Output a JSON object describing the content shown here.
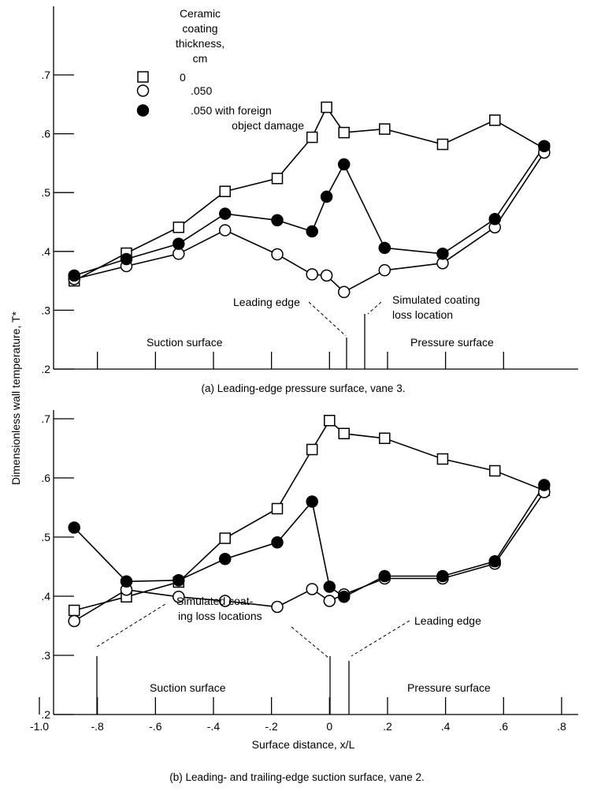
{
  "figure": {
    "ylabel": "Dimensionless wall temperature, T*",
    "legend": {
      "title_lines": [
        "Ceramic",
        "coating",
        "thickness,",
        "cm"
      ],
      "entries": [
        {
          "marker": "open-square",
          "lines": [
            "0"
          ]
        },
        {
          "marker": "open-circle",
          "lines": [
            ".050"
          ]
        },
        {
          "marker": "filled-circle",
          "lines": [
            ".050 with foreign",
            "object damage"
          ]
        }
      ]
    }
  },
  "chart_data": [
    {
      "type": "line",
      "caption": "(a) Leading-edge pressure surface, vane 3.",
      "ylim": [
        0.2,
        0.7
      ],
      "y_ticks": [
        0.2,
        0.3,
        0.4,
        0.5,
        0.6,
        0.7
      ],
      "y_tick_labels": [
        ".2",
        ".3",
        ".4",
        ".5",
        ".6",
        ".7"
      ],
      "x_marks": [
        -0.8,
        -0.6,
        -0.4,
        -0.2,
        0,
        0.2,
        0.4,
        0.6
      ],
      "series": [
        {
          "marker": "open-square",
          "x": [
            -0.88,
            -0.7,
            -0.52,
            -0.36,
            -0.18,
            -0.06,
            -0.01,
            0.05,
            0.19,
            0.39,
            0.57,
            0.74
          ],
          "y": [
            0.35,
            0.397,
            0.441,
            0.502,
            0.524,
            0.594,
            0.645,
            0.602,
            0.608,
            0.582,
            0.623,
            0.575
          ]
        },
        {
          "marker": "open-circle",
          "x": [
            -0.88,
            -0.7,
            -0.52,
            -0.36,
            -0.18,
            -0.06,
            -0.01,
            0.05,
            0.19,
            0.39,
            0.57,
            0.74
          ],
          "y": [
            0.353,
            0.375,
            0.396,
            0.436,
            0.395,
            0.361,
            0.359,
            0.331,
            0.368,
            0.38,
            0.441,
            0.568
          ]
        },
        {
          "marker": "filled-circle",
          "x": [
            -0.88,
            -0.7,
            -0.52,
            -0.36,
            -0.18,
            -0.06,
            -0.01,
            0.05,
            0.19,
            0.39,
            0.57,
            0.74
          ],
          "y": [
            0.359,
            0.387,
            0.413,
            0.464,
            0.453,
            0.434,
            0.493,
            0.548,
            0.406,
            0.396,
            0.455,
            0.579
          ]
        }
      ],
      "annotations": {
        "leading_edge": "Leading edge",
        "coating_loss": [
          "Simulated coating",
          "loss location"
        ],
        "suction": "Suction surface",
        "pressure": "Pressure surface"
      }
    },
    {
      "type": "line",
      "caption": "(b) Leading- and trailing-edge suction surface, vane 2.",
      "xlabel": "Surface distance, x/L",
      "ylim": [
        0.2,
        0.7
      ],
      "xlim": [
        -1.0,
        0.8
      ],
      "y_ticks": [
        0.2,
        0.3,
        0.4,
        0.5,
        0.6,
        0.7
      ],
      "y_tick_labels": [
        ".2",
        ".3",
        ".4",
        ".5",
        ".6",
        ".7"
      ],
      "x_ticks": [
        -1.0,
        -0.8,
        -0.6,
        -0.4,
        -0.2,
        0,
        0.2,
        0.4,
        0.6,
        0.8
      ],
      "x_tick_labels": [
        "-1.0",
        "-.8",
        "-.6",
        "-.4",
        "-.2",
        "0",
        ".2",
        ".4",
        ".6",
        ".8"
      ],
      "series": [
        {
          "marker": "open-square",
          "x": [
            -0.88,
            -0.7,
            -0.52,
            -0.36,
            -0.18,
            -0.06,
            0,
            0.05,
            0.19,
            0.39,
            0.57,
            0.74
          ],
          "y": [
            0.376,
            0.399,
            0.424,
            0.498,
            0.548,
            0.648,
            0.697,
            0.675,
            0.667,
            0.632,
            0.612,
            0.579
          ]
        },
        {
          "marker": "open-circle",
          "x": [
            -0.88,
            -0.7,
            -0.52,
            -0.36,
            -0.18,
            -0.06,
            0,
            0.05,
            0.19,
            0.39,
            0.57,
            0.74
          ],
          "y": [
            0.358,
            0.411,
            0.399,
            0.392,
            0.382,
            0.412,
            0.392,
            0.403,
            0.43,
            0.43,
            0.455,
            0.576
          ]
        },
        {
          "marker": "filled-circle",
          "x": [
            -0.88,
            -0.7,
            -0.52,
            -0.36,
            -0.18,
            -0.06,
            0,
            0.05,
            0.19,
            0.39,
            0.57,
            0.74
          ],
          "y": [
            0.516,
            0.425,
            0.427,
            0.463,
            0.491,
            0.56,
            0.416,
            0.399,
            0.434,
            0.434,
            0.459,
            0.588
          ]
        }
      ],
      "annotations": {
        "coating_loss": [
          "Simulated coat-",
          "ing loss locations"
        ],
        "leading_edge": "Leading edge",
        "suction": "Suction surface",
        "pressure": "Pressure surface"
      }
    }
  ]
}
